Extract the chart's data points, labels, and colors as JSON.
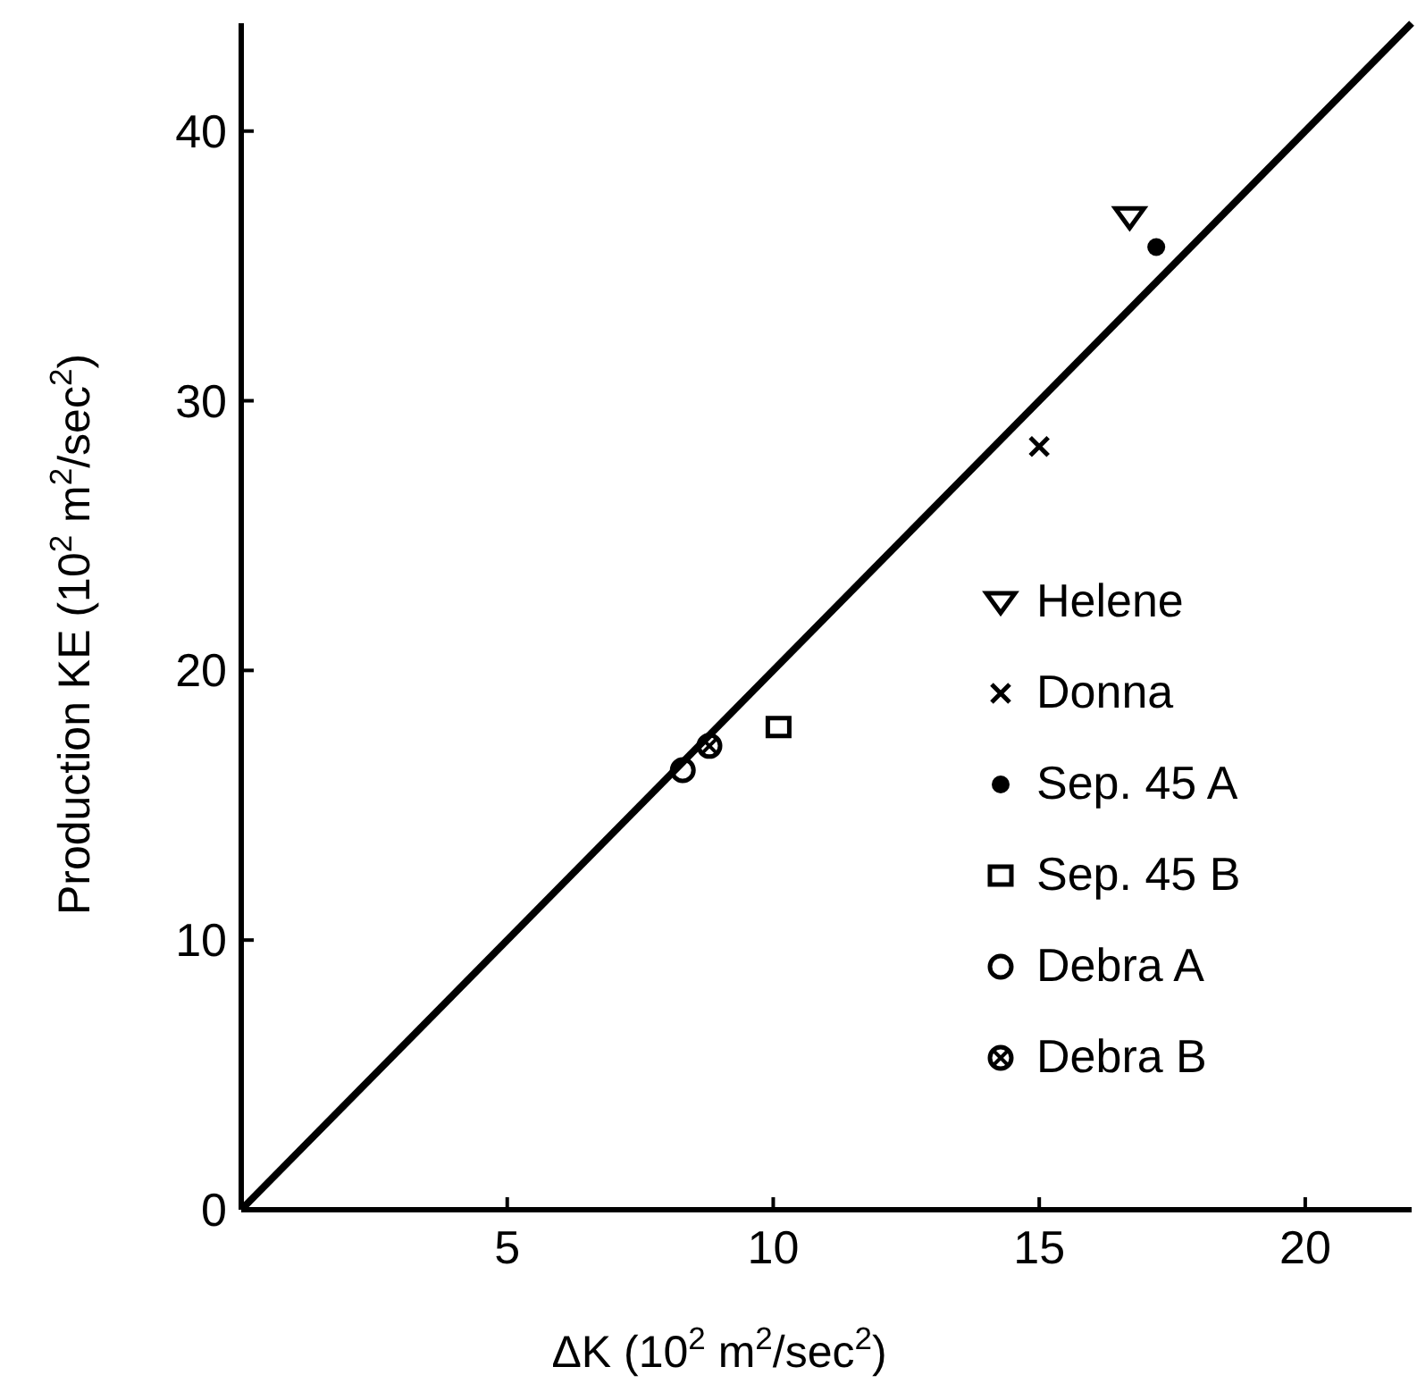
{
  "chart_data": {
    "type": "scatter",
    "xlabel": "ΔK (10$^{2}$ m$^{2}$/sec$^{2}$)",
    "ylabel": "Production KE (10$^{2}$ m$^{2}$/sec$^{2}$)",
    "xlim": [
      0,
      22
    ],
    "ylim": [
      0,
      44
    ],
    "xticks": [
      5,
      10,
      15,
      20
    ],
    "yticks": [
      0,
      10,
      20,
      30,
      40
    ],
    "grid": false,
    "legend": "right",
    "series": [
      {
        "name": "Helene",
        "color": "#000000",
        "marker": "triangle",
        "x": [
          16.7
        ],
        "values": [
          36.8
        ]
      },
      {
        "name": "Donna",
        "color": "#000000",
        "marker": "cross",
        "x": [
          15.0
        ],
        "values": [
          28.3
        ]
      },
      {
        "name": "Sep. 45 A",
        "color": "#000000",
        "marker": "dot",
        "x": [
          17.2
        ],
        "values": [
          35.7
        ]
      },
      {
        "name": "Sep. 45 B",
        "color": "#000000",
        "marker": "square",
        "x": [
          10.1
        ],
        "values": [
          17.9
        ]
      },
      {
        "name": "Debra A",
        "color": "#000000",
        "marker": "circle",
        "x": [
          8.3
        ],
        "values": [
          16.3
        ]
      },
      {
        "name": "Debra B",
        "color": "#000000",
        "marker": "circle-cross",
        "x": [
          8.8
        ],
        "values": [
          17.2
        ]
      },
      {
        "type": "line",
        "color": "#000000",
        "line_style": "solid",
        "x": [
          0,
          22
        ],
        "values": [
          0,
          44
        ]
      }
    ]
  }
}
